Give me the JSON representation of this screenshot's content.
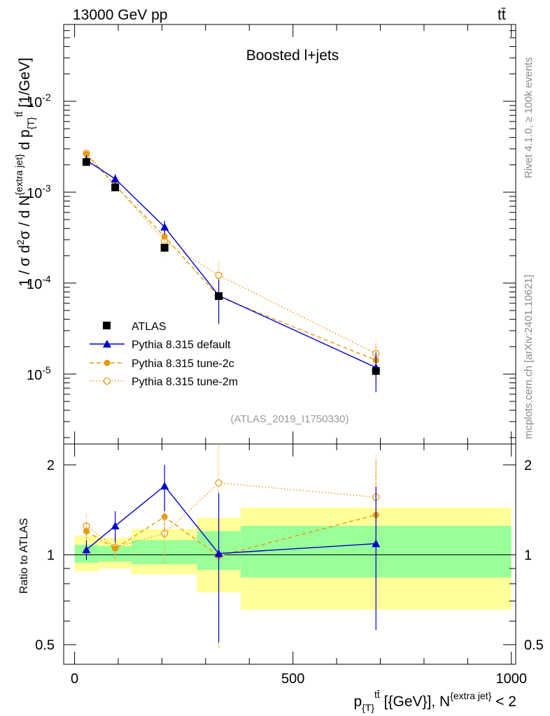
{
  "header": {
    "energy_label": "13000 GeV pp",
    "process_label": "tt̄"
  },
  "side_notes": {
    "rivet": "Rivet 4.1.0, ≥ 100k events",
    "mcplots": "mcplots.cern.ch [arXiv:2401.10621]"
  },
  "chart_data": {
    "type": "line",
    "title": "Boosted l+jets",
    "analysis_id": "(ATLAS_2019_I1750330)",
    "ylabel": "1 / σ d²σ / d N^{extra jet} d p_{T}^{tt̄} [1/GeV]",
    "xlabel": "p_{T}^{tt̄} [{GeV}], N^{extra jet} < 2",
    "xlim": [
      -25,
      1010
    ],
    "ylim": [
      1.7e-06,
      0.07
    ],
    "yscale": "log",
    "ytick_labels": [
      {
        "value": 0.01,
        "base": "10",
        "exp": "-2"
      },
      {
        "value": 0.001,
        "base": "10",
        "exp": "-3"
      },
      {
        "value": 0.0001,
        "base": "10",
        "exp": "-4"
      },
      {
        "value": 1e-05,
        "base": "10",
        "exp": "-5"
      }
    ],
    "x": [
      27,
      93,
      206,
      330,
      690
    ],
    "bin_edges": [
      0,
      55,
      130,
      280,
      380,
      1000
    ],
    "series": [
      {
        "name": "ATLAS",
        "style": "data",
        "color": "#000000",
        "values": [
          0.00215,
          0.00113,
          0.000245,
          7.2e-05,
          1.08e-05
        ],
        "err": [
          8e-05,
          5e-05,
          1.5e-05,
          4e-06,
          1e-06
        ]
      },
      {
        "name": "Pythia 8.315 default",
        "style": "solid",
        "marker": "triangle",
        "color": "#0000cc",
        "values": [
          0.00225,
          0.0014,
          0.000415,
          7.3e-05,
          1.18e-05
        ],
        "err": [
          0.0003,
          0.00018,
          7e-05,
          3.7e-05,
          5.5e-06
        ]
      },
      {
        "name": "Pythia 8.315 tune-2c",
        "style": "dashed",
        "marker": "filled-circle",
        "color": "#e69a10",
        "values": [
          0.00262,
          0.00118,
          0.000325,
          7.1e-05,
          1.42e-05
        ],
        "err": [
          0.0002,
          0.00012,
          6e-05,
          3.6e-05,
          6e-06
        ]
      },
      {
        "name": "Pythia 8.315 tune-2m",
        "style": "dotted",
        "marker": "open-circle",
        "color": "#e69a10",
        "values": [
          0.00268,
          0.0012,
          0.00029,
          0.000122,
          1.68e-05
        ],
        "err": [
          0.00025,
          0.00015,
          9e-05,
          5e-05,
          7e-06
        ]
      }
    ],
    "ratio": {
      "ylabel": "Ratio to ATLAS",
      "ylim": [
        0.43,
        2.35
      ],
      "yscale": "log",
      "ytick_labels": [
        {
          "value": 0.5,
          "label": "0.5"
        },
        {
          "value": 1,
          "label": "1"
        },
        {
          "value": 2,
          "label": "2"
        }
      ],
      "xtick_labels": [
        {
          "value": 0,
          "label": "0"
        },
        {
          "value": 500,
          "label": "500"
        },
        {
          "value": 1000,
          "label": "1000"
        }
      ],
      "band_outer": [
        [
          0.88,
          1.16
        ],
        [
          0.9,
          1.14
        ],
        [
          0.86,
          1.22
        ],
        [
          0.75,
          1.33
        ],
        [
          0.655,
          1.44
        ],
        [
          0.655,
          1.44
        ]
      ],
      "band_inner": [
        [
          0.94,
          1.08
        ],
        [
          0.95,
          1.07
        ],
        [
          0.93,
          1.12
        ],
        [
          0.89,
          1.2
        ],
        [
          0.84,
          1.25
        ],
        [
          0.84,
          1.25
        ]
      ],
      "series": [
        {
          "name": "Pythia 8.315 default",
          "values": [
            1.04,
            1.25,
            1.7,
            1.01,
            1.09
          ],
          "err_lo": [
            0.08,
            0.15,
            0.3,
            0.5,
            0.53
          ],
          "err_hi": [
            0.08,
            0.15,
            0.3,
            0.6,
            0.6
          ]
        },
        {
          "name": "Pythia 8.315 tune-2c",
          "values": [
            1.2,
            1.05,
            1.34,
            0.99,
            1.36
          ],
          "err_lo": [
            0.08,
            0.08,
            0.2,
            0.5,
            0.55
          ],
          "err_hi": [
            0.08,
            0.08,
            0.2,
            0.55,
            0.7
          ]
        },
        {
          "name": "Pythia 8.315 tune-2m",
          "values": [
            1.25,
            1.06,
            1.18,
            1.74,
            1.56
          ],
          "err_lo": [
            0.1,
            0.1,
            0.25,
            0.6,
            0.55
          ],
          "err_hi": [
            0.12,
            0.1,
            0.3,
            0.65,
            0.6
          ]
        }
      ]
    }
  }
}
